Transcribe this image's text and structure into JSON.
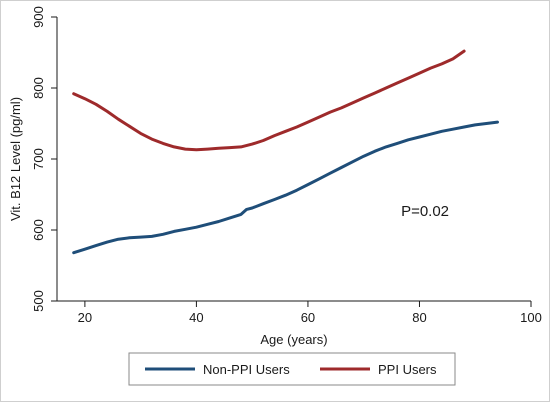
{
  "chart_data": {
    "type": "line",
    "title": "",
    "xlabel": "Age (years)",
    "ylabel": "Vit. B12 Level (pg/ml)",
    "xlim": [
      15,
      100
    ],
    "ylim": [
      500,
      900
    ],
    "xticks": [
      20,
      40,
      60,
      80,
      100
    ],
    "yticks": [
      500,
      600,
      700,
      800,
      900
    ],
    "grid": false,
    "legend_position": "bottom",
    "annotation": "P=0.02",
    "series": [
      {
        "name": "Non-PPI Users",
        "color": "#1f4e79",
        "x": [
          18,
          20,
          22,
          24,
          26,
          28,
          30,
          32,
          34,
          36,
          38,
          40,
          42,
          44,
          46,
          48,
          49,
          50,
          52,
          54,
          56,
          58,
          60,
          62,
          64,
          66,
          68,
          70,
          72,
          74,
          76,
          78,
          80,
          82,
          84,
          86,
          88,
          90,
          92,
          94
        ],
        "y": [
          568,
          573,
          578,
          583,
          587,
          589,
          590,
          591,
          594,
          598,
          601,
          604,
          608,
          612,
          617,
          622,
          629,
          631,
          637,
          643,
          649,
          656,
          664,
          672,
          680,
          688,
          696,
          704,
          711,
          717,
          722,
          727,
          731,
          735,
          739,
          742,
          745,
          748,
          750,
          752
        ]
      },
      {
        "name": "PPI Users",
        "color": "#9e2a2b",
        "x": [
          18,
          20,
          22,
          24,
          26,
          28,
          30,
          32,
          34,
          36,
          38,
          40,
          42,
          44,
          46,
          48,
          50,
          52,
          54,
          56,
          58,
          60,
          62,
          64,
          66,
          68,
          70,
          72,
          74,
          76,
          78,
          80,
          82,
          84,
          86,
          88
        ],
        "y": [
          792,
          785,
          777,
          767,
          756,
          746,
          736,
          728,
          722,
          717,
          714,
          713,
          714,
          715,
          716,
          717,
          721,
          726,
          733,
          739,
          745,
          752,
          759,
          766,
          772,
          779,
          786,
          793,
          800,
          807,
          814,
          821,
          828,
          834,
          841,
          852
        ]
      }
    ]
  }
}
